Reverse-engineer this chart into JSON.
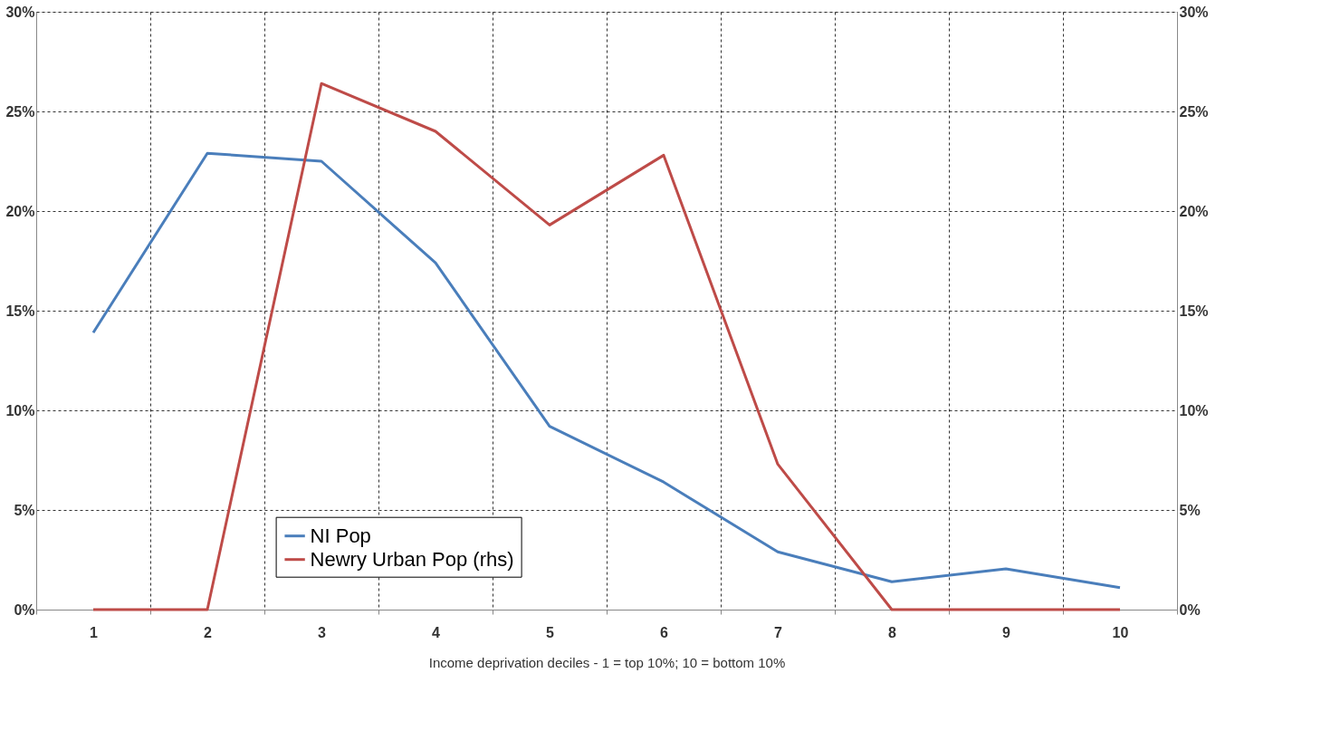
{
  "chart_data": {
    "type": "line",
    "xlabel": "Income deprivation deciles - 1 = top 10%; 10 = bottom 10%",
    "categories": [
      "1",
      "2",
      "3",
      "4",
      "5",
      "6",
      "7",
      "8",
      "9",
      "10"
    ],
    "series": [
      {
        "name": "NI Pop",
        "color": "#4a7ebb",
        "values": [
          13.9,
          22.9,
          22.5,
          17.4,
          9.2,
          6.4,
          2.9,
          1.4,
          2.05,
          1.1
        ]
      },
      {
        "name": "Newry Urban Pop (rhs)",
        "color": "#be4b48",
        "axis": "y2",
        "values": [
          0,
          0,
          26.4,
          24.0,
          19.3,
          22.8,
          7.3,
          0,
          0,
          0
        ]
      }
    ],
    "ylim": [
      0,
      30
    ],
    "yticks": [
      {
        "value": 0,
        "label": "0%"
      },
      {
        "value": 5,
        "label": "5%"
      },
      {
        "value": 10,
        "label": "10%"
      },
      {
        "value": 15,
        "label": "15%"
      },
      {
        "value": 20,
        "label": "20%"
      },
      {
        "value": 25,
        "label": "25%"
      },
      {
        "value": 30,
        "label": "30%"
      }
    ],
    "y2lim": [
      0,
      30
    ],
    "y2ticks": [
      {
        "value": 0,
        "label": "0%"
      },
      {
        "value": 5,
        "label": "5%"
      },
      {
        "value": 10,
        "label": "10%"
      },
      {
        "value": 15,
        "label": "15%"
      },
      {
        "value": 20,
        "label": "20%"
      },
      {
        "value": 25,
        "label": "25%"
      },
      {
        "value": 30,
        "label": "30%"
      }
    ],
    "grid": true,
    "legend": "bottom",
    "marker": "none",
    "line_style": "solid"
  }
}
